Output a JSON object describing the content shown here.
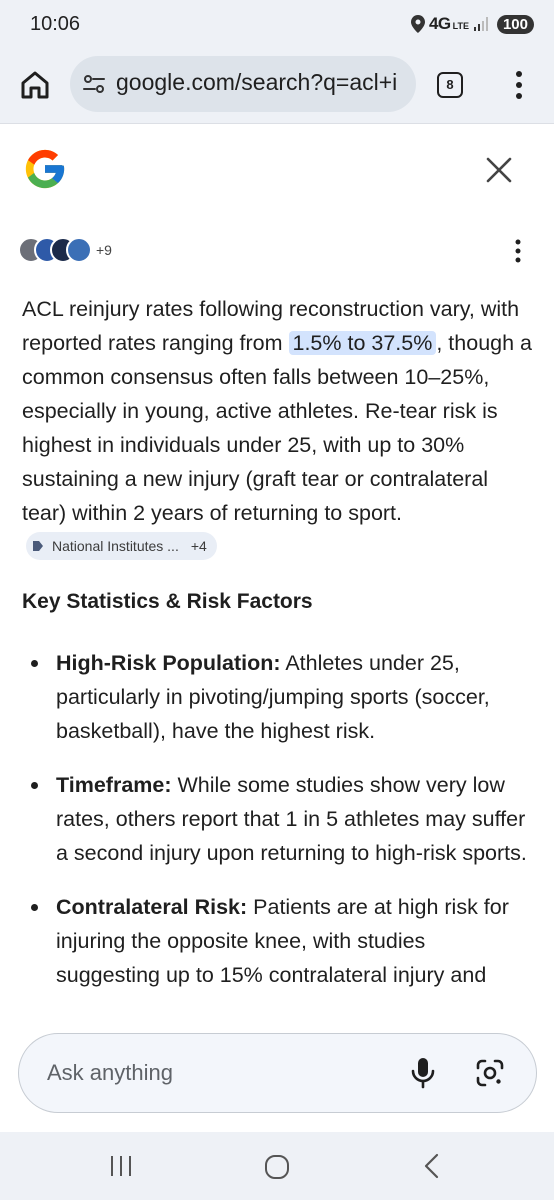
{
  "status_bar": {
    "time": "10:06",
    "network": "4G",
    "network_sub": "LTE",
    "battery": "100"
  },
  "browser": {
    "url": "google.com/search?q=acl+i",
    "tab_count": "8"
  },
  "ai_overview": {
    "sources_more": "+9",
    "answer": {
      "part1": "ACL reinjury rates following reconstruction vary, with reported rates ranging from ",
      "highlight": "1.5% to 37.5%",
      "part2": ", though a common consensus often falls between 10–25%, especially in young, active athletes. Re-tear risk is highest in individuals under 25, with up to 30% sustaining a new injury (graft tear or contralateral tear) within 2 years of returning to sport. ",
      "citation_label": "National Institutes ...",
      "citation_more": "+4"
    },
    "heading": "Key Statistics & Risk Factors",
    "bullets": [
      {
        "title": "High-Risk Population:",
        "text": " Athletes under 25, particularly in pivoting/jumping sports (soccer, basketball), have the highest risk."
      },
      {
        "title": "Timeframe:",
        "text": " While some studies show very low rates, others report that 1 in 5 athletes may suffer a second injury upon returning to high-risk sports."
      },
      {
        "title": "Contralateral Risk:",
        "text": " Patients are at high risk for injuring the opposite knee, with studies suggesting up to 15% contralateral injury and"
      }
    ]
  },
  "ask_bar": {
    "placeholder": "Ask anything"
  },
  "icons": {
    "home": "home-icon",
    "site_settings": "tune-icon",
    "tabs": "tab-switcher-icon",
    "menu": "more-vert-icon",
    "logo": "google-logo",
    "close": "close-icon",
    "mic": "mic-icon",
    "lens": "google-lens-icon"
  },
  "colors": {
    "highlight": "#d3e3fd",
    "chrome_bg": "#eef1f6",
    "chip_bg": "#e9eef6"
  }
}
